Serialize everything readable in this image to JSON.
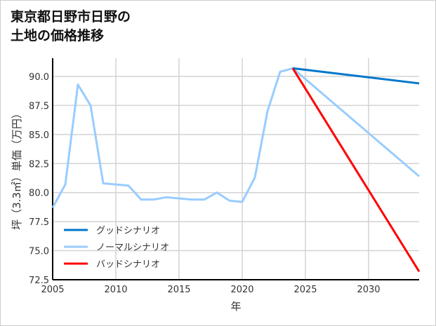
{
  "chart_data": {
    "type": "line",
    "title": "東京都日野市日野の\n土地の価格推移",
    "xlabel": "年",
    "ylabel": "坪（3.3㎡）単価（万円）",
    "xlim": [
      2005,
      2034
    ],
    "ylim": [
      72.5,
      91.5
    ],
    "xticks": [
      2005,
      2010,
      2015,
      2020,
      2025,
      2030
    ],
    "yticks": [
      72.5,
      75.0,
      77.5,
      80.0,
      82.5,
      85.0,
      87.5,
      90.0
    ],
    "grid": true,
    "legend_position": "bottom-left",
    "series": [
      {
        "name": "グッドシナリオ",
        "color": "#0077cc",
        "x": [
          2024,
          2034
        ],
        "y": [
          90.7,
          89.4
        ]
      },
      {
        "name": "ノーマルシナリオ",
        "color": "#99ccff",
        "x": [
          2005,
          2006,
          2007,
          2008,
          2009,
          2010,
          2011,
          2012,
          2013,
          2014,
          2015,
          2016,
          2017,
          2018,
          2019,
          2020,
          2021,
          2022,
          2023,
          2024,
          2034
        ],
        "y": [
          78.7,
          80.7,
          89.3,
          87.5,
          80.8,
          80.7,
          80.6,
          79.4,
          79.4,
          79.6,
          79.5,
          79.4,
          79.4,
          80.0,
          79.3,
          79.2,
          81.3,
          87.0,
          90.4,
          90.7,
          81.4
        ]
      },
      {
        "name": "バッドシナリオ",
        "color": "#ff0000",
        "x": [
          2024,
          2034
        ],
        "y": [
          90.7,
          73.2
        ]
      }
    ]
  }
}
